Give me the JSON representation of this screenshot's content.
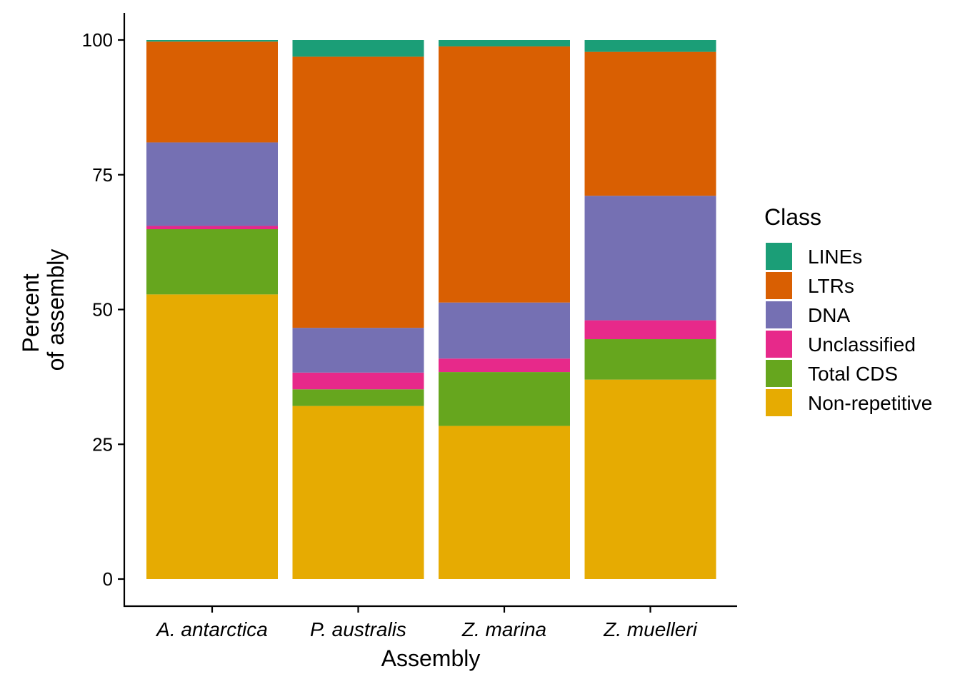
{
  "chart_data": {
    "type": "bar",
    "stacked": true,
    "title": "",
    "xlabel": "Assembly",
    "ylabel_lines": [
      "Percent",
      "of assembly"
    ],
    "ylim": [
      0,
      100
    ],
    "yticks": [
      0,
      25,
      50,
      75,
      100
    ],
    "categories": [
      "A. antarctica",
      "P. australis",
      "Z. marina",
      "Z. muelleri"
    ],
    "legend": {
      "title": "Class",
      "position": "right"
    },
    "grid": false,
    "series": [
      {
        "name": "Non-repetitive",
        "color": "#E6AB02",
        "values": [
          52.8,
          32.1,
          28.4,
          37.0
        ]
      },
      {
        "name": "Total CDS",
        "color": "#66A61E",
        "values": [
          12.1,
          3.1,
          10.0,
          7.5
        ]
      },
      {
        "name": "Unclassified",
        "color": "#E7298A",
        "values": [
          0.6,
          3.1,
          2.5,
          3.5
        ]
      },
      {
        "name": "DNA",
        "color": "#7570B3",
        "values": [
          15.5,
          8.3,
          10.4,
          23.1
        ]
      },
      {
        "name": "LTRs",
        "color": "#D95F02",
        "values": [
          18.7,
          50.3,
          47.5,
          26.7
        ]
      },
      {
        "name": "LINEs",
        "color": "#1B9E77",
        "values": [
          0.3,
          3.1,
          1.2,
          2.2
        ]
      }
    ]
  }
}
